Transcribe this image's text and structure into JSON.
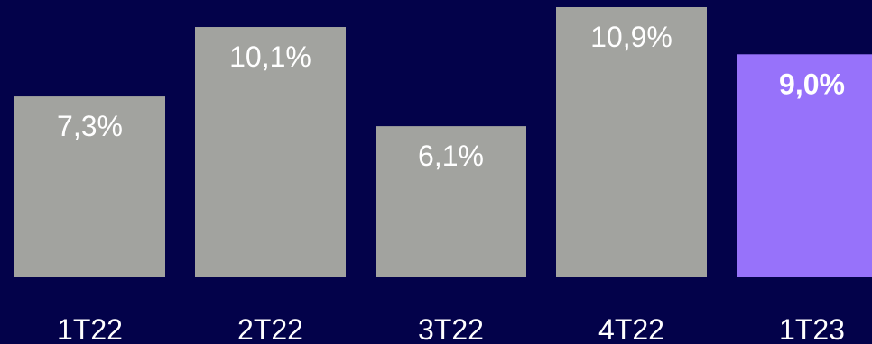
{
  "chart_data": {
    "type": "bar",
    "categories": [
      "1T22",
      "2T22",
      "3T22",
      "4T22",
      "1T23"
    ],
    "values": [
      7.3,
      10.1,
      6.1,
      10.9,
      9.0
    ],
    "value_labels": [
      "7,3%",
      "10,1%",
      "6,1%",
      "10,9%",
      "9,0%"
    ],
    "highlight_index": 4,
    "title": "",
    "xlabel": "",
    "ylabel": "",
    "ylim": [
      0,
      10.9
    ],
    "grid": false,
    "colors": {
      "background": "#03024a",
      "bar": "#a2a39f",
      "highlight_bar": "#9772fa",
      "value_text": "#ffffff",
      "category_text": "#ffffff"
    }
  }
}
